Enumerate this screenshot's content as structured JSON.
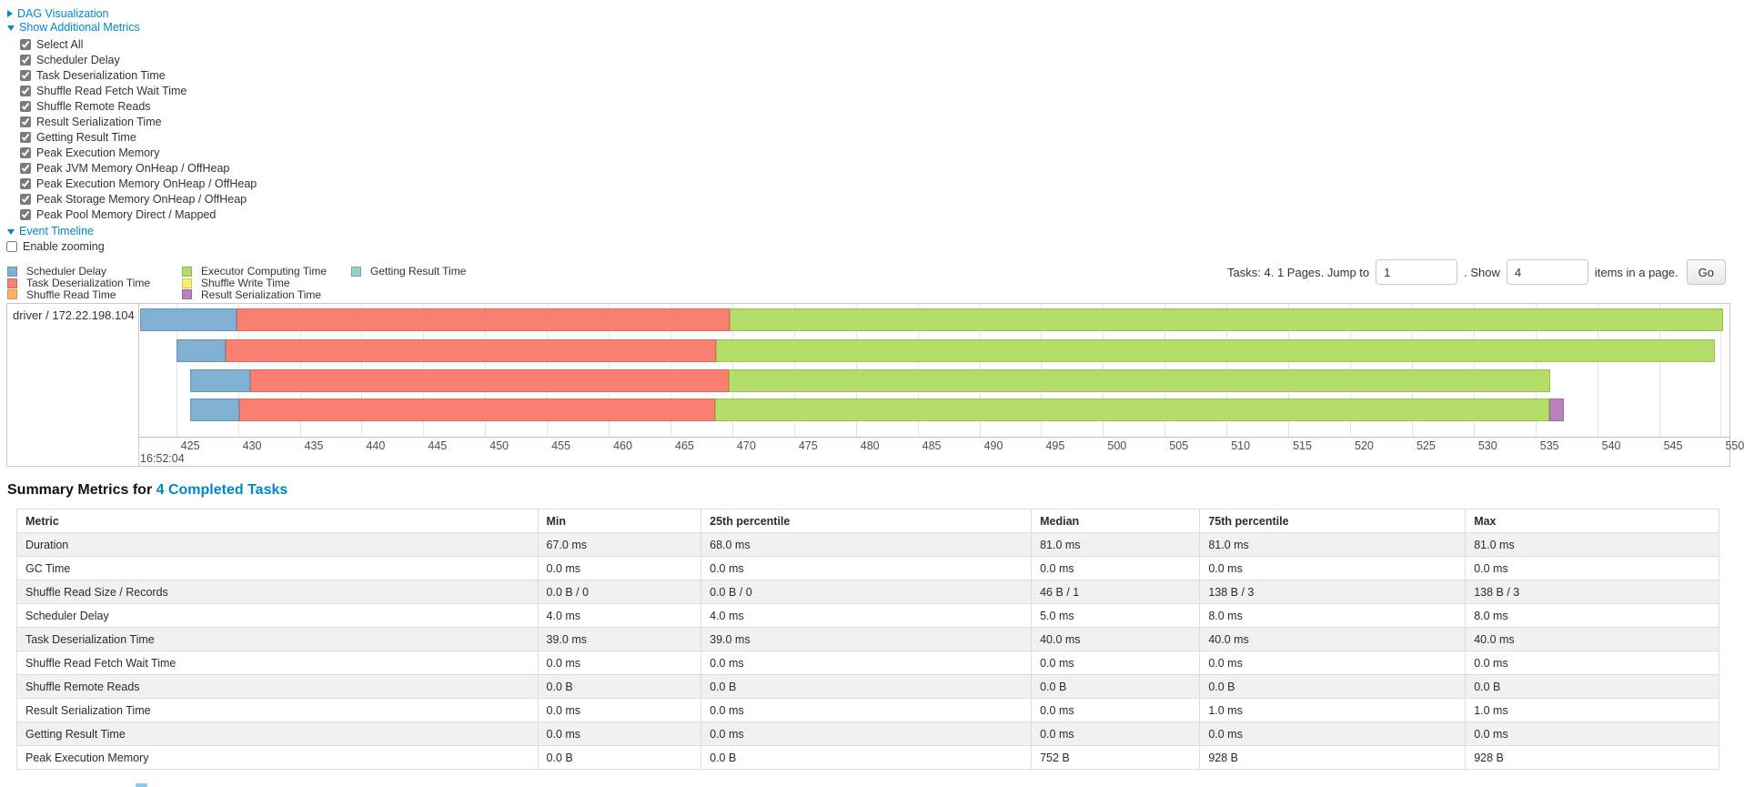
{
  "controls": {
    "dag_link": "DAG Visualization",
    "metrics_link": "Show Additional Metrics",
    "metric_checkboxes": [
      "Select All",
      "Scheduler Delay",
      "Task Deserialization Time",
      "Shuffle Read Fetch Wait Time",
      "Shuffle Remote Reads",
      "Result Serialization Time",
      "Getting Result Time",
      "Peak Execution Memory",
      "Peak JVM Memory OnHeap / OffHeap",
      "Peak Execution Memory OnHeap / OffHeap",
      "Peak Storage Memory OnHeap / OffHeap",
      "Peak Pool Memory Direct / Mapped"
    ],
    "event_timeline_link": "Event Timeline",
    "enable_zooming_label": "Enable zooming"
  },
  "legend": {
    "columns": [
      {
        "items": [
          {
            "key": "scheduler_delay",
            "label": "Scheduler Delay"
          },
          {
            "key": "task_deserialization",
            "label": "Task Deserialization Time"
          },
          {
            "key": "shuffle_read",
            "label": "Shuffle Read Time"
          }
        ]
      },
      {
        "items": [
          {
            "key": "executor_computing",
            "label": "Executor Computing Time"
          },
          {
            "key": "shuffle_write",
            "label": "Shuffle Write Time"
          },
          {
            "key": "result_serialization",
            "label": "Result Serialization Time"
          }
        ]
      },
      {
        "items": [
          {
            "key": "getting_result",
            "label": "Getting Result Time"
          }
        ]
      }
    ]
  },
  "pagination": {
    "prefix": "Tasks: 4. 1 Pages. Jump to",
    "jump_value": "1",
    "mid": ". Show",
    "show_value": "4",
    "suffix": "items in a page.",
    "go_label": "Go"
  },
  "colors": {
    "link": "#0088cc",
    "scheduler_delay": "#80B1D3",
    "task_deserialization": "#FB8072",
    "shuffle_read": "#FDB462",
    "executor_computing": "#B3DE69",
    "shuffle_write": "#FFED6F",
    "result_serialization": "#BC80BD",
    "getting_result": "#8DD3C7"
  },
  "colors_border": {
    "scheduler_delay": "#6694b8",
    "task_deserialization": "#e2685c",
    "shuffle_read": "#e09a48",
    "executor_computing": "#99c14d",
    "shuffle_write": "#e6d455",
    "result_serialization": "#a569a7",
    "getting_result": "#74b8ab"
  },
  "chart_data": {
    "type": "bar",
    "variant": "task-event-timeline-gantt",
    "group_label": "driver / 172.22.198.104",
    "axis": {
      "xlim": [
        422,
        550.7
      ],
      "ticks": [
        425,
        430,
        435,
        440,
        445,
        450,
        455,
        460,
        465,
        470,
        475,
        480,
        485,
        490,
        495,
        500,
        505,
        510,
        515,
        520,
        525,
        530,
        535,
        540,
        545,
        550
      ],
      "major_label": "16:52:04",
      "grid": true
    },
    "tasks": [
      {
        "segments": [
          {
            "type": "scheduler_delay",
            "start": 422.1,
            "end": 429.9
          },
          {
            "type": "task_deserialization",
            "start": 429.9,
            "end": 469.8
          },
          {
            "type": "executor_computing",
            "start": 469.8,
            "end": 550.2
          }
        ]
      },
      {
        "segments": [
          {
            "type": "scheduler_delay",
            "start": 425.0,
            "end": 429.0
          },
          {
            "type": "task_deserialization",
            "start": 429.0,
            "end": 468.7
          },
          {
            "type": "executor_computing",
            "start": 468.7,
            "end": 549.5
          }
        ]
      },
      {
        "segments": [
          {
            "type": "scheduler_delay",
            "start": 426.1,
            "end": 431.0
          },
          {
            "type": "task_deserialization",
            "start": 431.0,
            "end": 469.7
          },
          {
            "type": "executor_computing",
            "start": 469.7,
            "end": 536.2
          }
        ]
      },
      {
        "segments": [
          {
            "type": "scheduler_delay",
            "start": 426.1,
            "end": 430.1
          },
          {
            "type": "task_deserialization",
            "start": 430.1,
            "end": 468.6
          },
          {
            "type": "executor_computing",
            "start": 468.6,
            "end": 536.1
          },
          {
            "type": "result_serialization",
            "start": 536.1,
            "end": 537.3
          }
        ]
      }
    ]
  },
  "summary": {
    "title_prefix": "Summary Metrics for",
    "title_link": "4 Completed Tasks",
    "table": {
      "headers": [
        "Metric",
        "Min",
        "25th percentile",
        "Median",
        "75th percentile",
        "Max"
      ],
      "rows": [
        [
          "Duration",
          "67.0 ms",
          "68.0 ms",
          "81.0 ms",
          "81.0 ms",
          "81.0 ms"
        ],
        [
          "GC Time",
          "0.0 ms",
          "0.0 ms",
          "0.0 ms",
          "0.0 ms",
          "0.0 ms"
        ],
        [
          "Shuffle Read Size / Records",
          "0.0 B / 0",
          "0.0 B / 0",
          "46 B / 1",
          "138 B / 3",
          "138 B / 3"
        ],
        [
          "Scheduler Delay",
          "4.0 ms",
          "4.0 ms",
          "5.0 ms",
          "8.0 ms",
          "8.0 ms"
        ],
        [
          "Task Deserialization Time",
          "39.0 ms",
          "39.0 ms",
          "40.0 ms",
          "40.0 ms",
          "40.0 ms"
        ],
        [
          "Shuffle Read Fetch Wait Time",
          "0.0 ms",
          "0.0 ms",
          "0.0 ms",
          "0.0 ms",
          "0.0 ms"
        ],
        [
          "Shuffle Remote Reads",
          "0.0 B",
          "0.0 B",
          "0.0 B",
          "0.0 B",
          "0.0 B"
        ],
        [
          "Result Serialization Time",
          "0.0 ms",
          "0.0 ms",
          "0.0 ms",
          "1.0 ms",
          "1.0 ms"
        ],
        [
          "Getting Result Time",
          "0.0 ms",
          "0.0 ms",
          "0.0 ms",
          "0.0 ms",
          "0.0 ms"
        ],
        [
          "Peak Execution Memory",
          "0.0 B",
          "0.0 B",
          "752 B",
          "928 B",
          "928 B"
        ]
      ]
    }
  }
}
